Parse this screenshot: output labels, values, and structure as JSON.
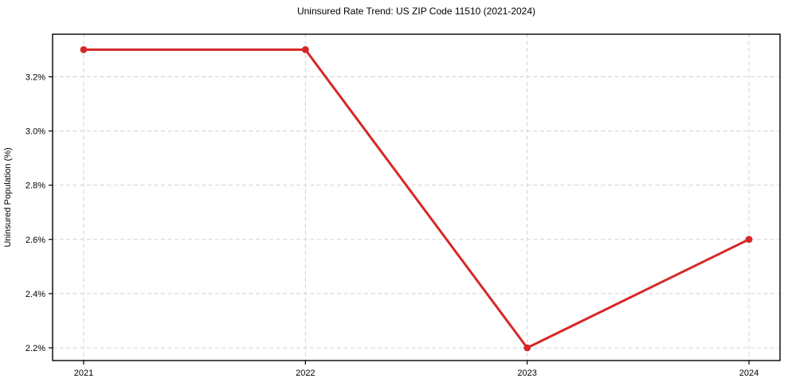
{
  "chart_data": {
    "type": "line",
    "title": "Uninsured Rate Trend: US ZIP Code 11510 (2021-2024)",
    "xlabel": "",
    "ylabel": "Uninsured Population (%)",
    "x": [
      2021,
      2022,
      2023,
      2024
    ],
    "x_tick_labels": [
      "2021",
      "2022",
      "2023",
      "2024"
    ],
    "series": [
      {
        "values": [
          3.3,
          3.3,
          2.2,
          2.6
        ],
        "color": "#d62728"
      }
    ],
    "y_ticks": [
      2.2,
      2.4,
      2.6,
      2.8,
      3.0,
      3.2
    ],
    "y_tick_labels": [
      "2.2%",
      "2.4%",
      "2.6%",
      "2.8%",
      "3.0%",
      "3.2%"
    ],
    "xlim": [
      2020.86,
      2024.14
    ],
    "ylim": [
      2.153,
      3.357
    ],
    "grid": true,
    "legend": "none"
  },
  "colors": {
    "line": "#d62728",
    "grid": "#d2d2d2",
    "axis": "#000000",
    "text": "#000000",
    "background": "#ffffff"
  }
}
